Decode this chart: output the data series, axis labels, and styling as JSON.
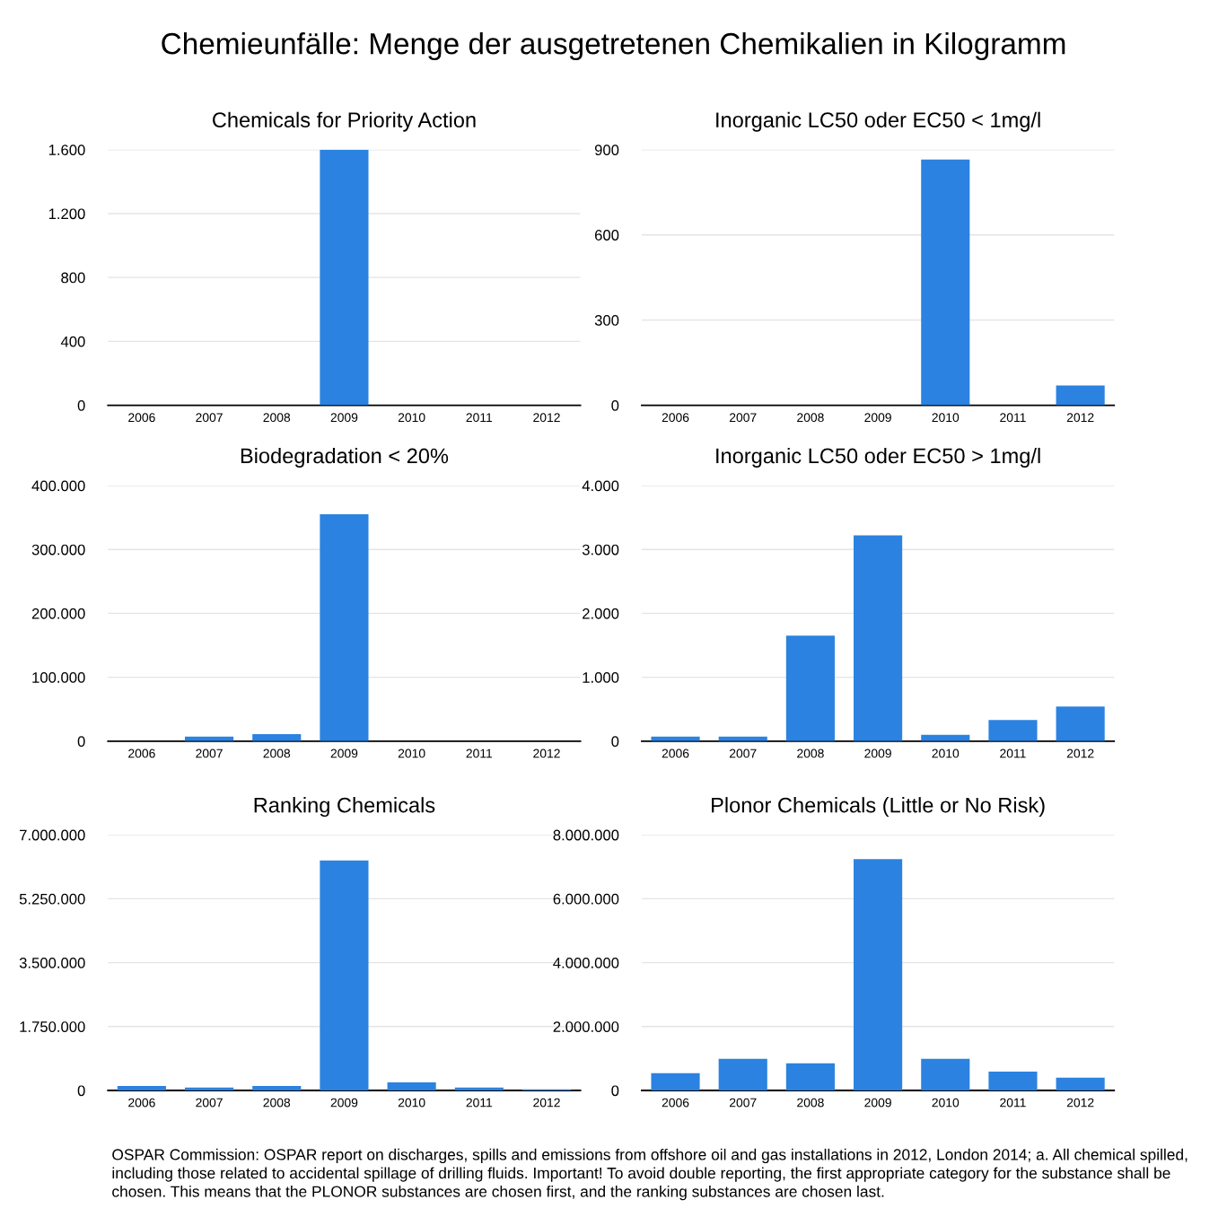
{
  "chart_data": [
    {
      "type": "bar",
      "title": "Chemicals for Priority Action",
      "categories": [
        "2006",
        "2007",
        "2008",
        "2009",
        "2010",
        "2011",
        "2012"
      ],
      "values": [
        0,
        0,
        0,
        1600,
        0,
        0,
        0
      ],
      "color": "#2b82e0",
      "ylim": [
        0,
        1600
      ],
      "yticks": [
        0,
        {
          "value": 400,
          "label": "400"
        },
        {
          "value": 800,
          "label": "800"
        },
        {
          "value": 1200,
          "label": "1.200"
        },
        {
          "value": 1600,
          "label": "1.600"
        }
      ],
      "grid": "y"
    },
    {
      "type": "bar",
      "title": "Inorganic LC50 oder EC50 < 1mg/l",
      "categories": [
        "2006",
        "2007",
        "2008",
        "2009",
        "2010",
        "2011",
        "2012"
      ],
      "values": [
        0,
        0,
        0,
        0,
        865,
        0,
        70
      ],
      "color": "#2b82e0",
      "ylim": [
        0,
        900
      ],
      "yticks": [
        0,
        300,
        600,
        900
      ],
      "grid": "y"
    },
    {
      "type": "bar",
      "title": "Biodegradation < 20%",
      "categories": [
        "2006",
        "2007",
        "2008",
        "2009",
        "2010",
        "2011",
        "2012"
      ],
      "values": [
        0,
        7000,
        11000,
        355000,
        0,
        0,
        0
      ],
      "color": "#2b82e0",
      "ylim": [
        0,
        400000
      ],
      "yticks": [
        0,
        {
          "value": 100000,
          "label": "100.000"
        },
        {
          "value": 200000,
          "label": "200.000"
        },
        {
          "value": 300000,
          "label": "300.000"
        },
        {
          "value": 400000,
          "label": "400.000"
        }
      ],
      "grid": "y"
    },
    {
      "type": "bar",
      "title": "Inorganic LC50 oder EC50 > 1mg/l",
      "categories": [
        "2006",
        "2007",
        "2008",
        "2009",
        "2010",
        "2011",
        "2012"
      ],
      "values": [
        70,
        70,
        1650,
        3220,
        100,
        330,
        540
      ],
      "color": "#2b82e0",
      "ylim": [
        0,
        4000
      ],
      "yticks": [
        0,
        {
          "value": 1000,
          "label": "1.000"
        },
        {
          "value": 2000,
          "label": "2.000"
        },
        {
          "value": 3000,
          "label": "3.000"
        },
        {
          "value": 4000,
          "label": "4.000"
        }
      ],
      "grid": "y"
    },
    {
      "type": "bar",
      "title": "Ranking Chemicals",
      "categories": [
        "2006",
        "2007",
        "2008",
        "2009",
        "2010",
        "2011",
        "2012"
      ],
      "values": [
        120000,
        80000,
        120000,
        6300000,
        220000,
        80000,
        30000
      ],
      "color": "#2b82e0",
      "ylim": [
        0,
        7000000
      ],
      "yticks": [
        0,
        {
          "value": 1750000,
          "label": "1.750.000"
        },
        {
          "value": 3500000,
          "label": "3.500.000"
        },
        {
          "value": 5250000,
          "label": "5.250.000"
        },
        {
          "value": 7000000,
          "label": "7.000.000"
        }
      ],
      "grid": "y"
    },
    {
      "type": "bar",
      "title": "Plonor Chemicals (Little or No Risk)",
      "categories": [
        "2006",
        "2007",
        "2008",
        "2009",
        "2010",
        "2011",
        "2012"
      ],
      "values": [
        540000,
        990000,
        850000,
        7240000,
        990000,
        590000,
        400000
      ],
      "color": "#2b82e0",
      "ylim": [
        0,
        8000000
      ],
      "yticks": [
        0,
        {
          "value": 2000000,
          "label": "2.000.000"
        },
        {
          "value": 4000000,
          "label": "4.000.000"
        },
        {
          "value": 6000000,
          "label": "6.000.000"
        },
        {
          "value": 8000000,
          "label": "8.000.000"
        }
      ],
      "grid": "y",
      "annotations": [
        "Chemieunfälle: Menge der ausgetretenen Chemikalien in Kilogramm",
        "OSPAR Commission: OSPAR report on discharges, spills and emissions from offshore oil and gas installations in 2012, London 2014; a. All chemical spilled, including those related to accidental spillage of drilling fluids. Important! To avoid double reporting, the first appropriate category for the substance shall be chosen. This means that the PLONOR substances are chosen first, and the ranking substances are chosen last."
      ]
    }
  ]
}
